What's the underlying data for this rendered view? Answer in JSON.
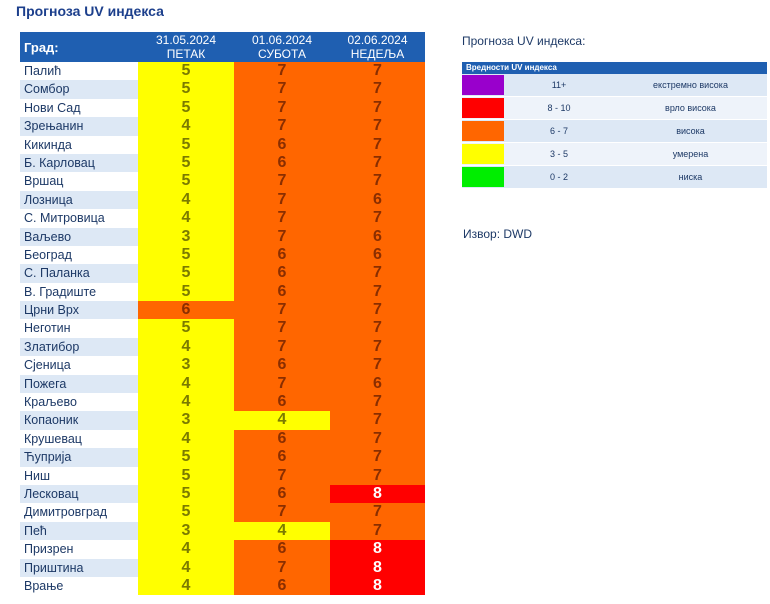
{
  "page_title": "Прогноза UV индекса",
  "table": {
    "city_header": "Град:",
    "days": [
      {
        "date": "31.05.2024",
        "weekday": "ПЕТАК"
      },
      {
        "date": "01.06.2024",
        "weekday": "СУБОТА"
      },
      {
        "date": "02.06.2024",
        "weekday": "НЕДЕЉА"
      }
    ],
    "rows": [
      {
        "city": "Палић",
        "values": [
          "5",
          "7",
          "7"
        ]
      },
      {
        "city": "Сомбор",
        "values": [
          "5",
          "7",
          "7"
        ]
      },
      {
        "city": "Нови Сад",
        "values": [
          "5",
          "7",
          "7"
        ]
      },
      {
        "city": "Зрењанин",
        "values": [
          "4",
          "7",
          "7"
        ]
      },
      {
        "city": "Кикинда",
        "values": [
          "5",
          "6",
          "7"
        ]
      },
      {
        "city": "Б. Карловац",
        "values": [
          "5",
          "6",
          "7"
        ]
      },
      {
        "city": "Вршац",
        "values": [
          "5",
          "7",
          "7"
        ]
      },
      {
        "city": "Лозница",
        "values": [
          "4",
          "7",
          "6"
        ]
      },
      {
        "city": "С. Митровица",
        "values": [
          "4",
          "7",
          "7"
        ]
      },
      {
        "city": "Ваљево",
        "values": [
          "3",
          "7",
          "6"
        ]
      },
      {
        "city": "Београд",
        "values": [
          "5",
          "6",
          "6"
        ]
      },
      {
        "city": "С. Паланка",
        "values": [
          "5",
          "6",
          "7"
        ]
      },
      {
        "city": "В. Градиште",
        "values": [
          "5",
          "6",
          "7"
        ]
      },
      {
        "city": "Црни Врх",
        "values": [
          "6",
          "7",
          "7"
        ]
      },
      {
        "city": "Неготин",
        "values": [
          "5",
          "7",
          "7"
        ]
      },
      {
        "city": "Златибор",
        "values": [
          "4",
          "7",
          "7"
        ]
      },
      {
        "city": "Сјеница",
        "values": [
          "3",
          "6",
          "7"
        ]
      },
      {
        "city": "Пожега",
        "values": [
          "4",
          "7",
          "6"
        ]
      },
      {
        "city": "Краљево",
        "values": [
          "4",
          "6",
          "7"
        ]
      },
      {
        "city": "Копаоник",
        "values": [
          "3",
          "4",
          "7"
        ]
      },
      {
        "city": "Крушевац",
        "values": [
          "4",
          "6",
          "7"
        ]
      },
      {
        "city": "Ћуприја",
        "values": [
          "5",
          "6",
          "7"
        ]
      },
      {
        "city": "Ниш",
        "values": [
          "5",
          "7",
          "7"
        ]
      },
      {
        "city": "Лесковац",
        "values": [
          "5",
          "6",
          "8"
        ]
      },
      {
        "city": "Димитровград",
        "values": [
          "5",
          "7",
          "7"
        ]
      },
      {
        "city": "Пећ",
        "values": [
          "3",
          "4",
          "7"
        ]
      },
      {
        "city": "Призрен",
        "values": [
          "4",
          "6",
          "8"
        ]
      },
      {
        "city": "Приштина",
        "values": [
          "4",
          "7",
          "8"
        ]
      },
      {
        "city": "Врање",
        "values": [
          "4",
          "6",
          "8"
        ]
      }
    ]
  },
  "legend": {
    "title": "Прогноза UV индекса:",
    "header": "Вредности UV индекса",
    "rows": [
      {
        "range": "11+",
        "label": "екстремно висока",
        "color": "#9900cc"
      },
      {
        "range": "8 - 10",
        "label": "врло висока",
        "color": "#ff0000"
      },
      {
        "range": "6 - 7",
        "label": "висока",
        "color": "#ff6600"
      },
      {
        "range": "3 - 5",
        "label": "умерена",
        "color": "#ffff00"
      },
      {
        "range": "0 - 2",
        "label": "ниска",
        "color": "#00ee00"
      }
    ]
  },
  "source": "Извор: DWD"
}
